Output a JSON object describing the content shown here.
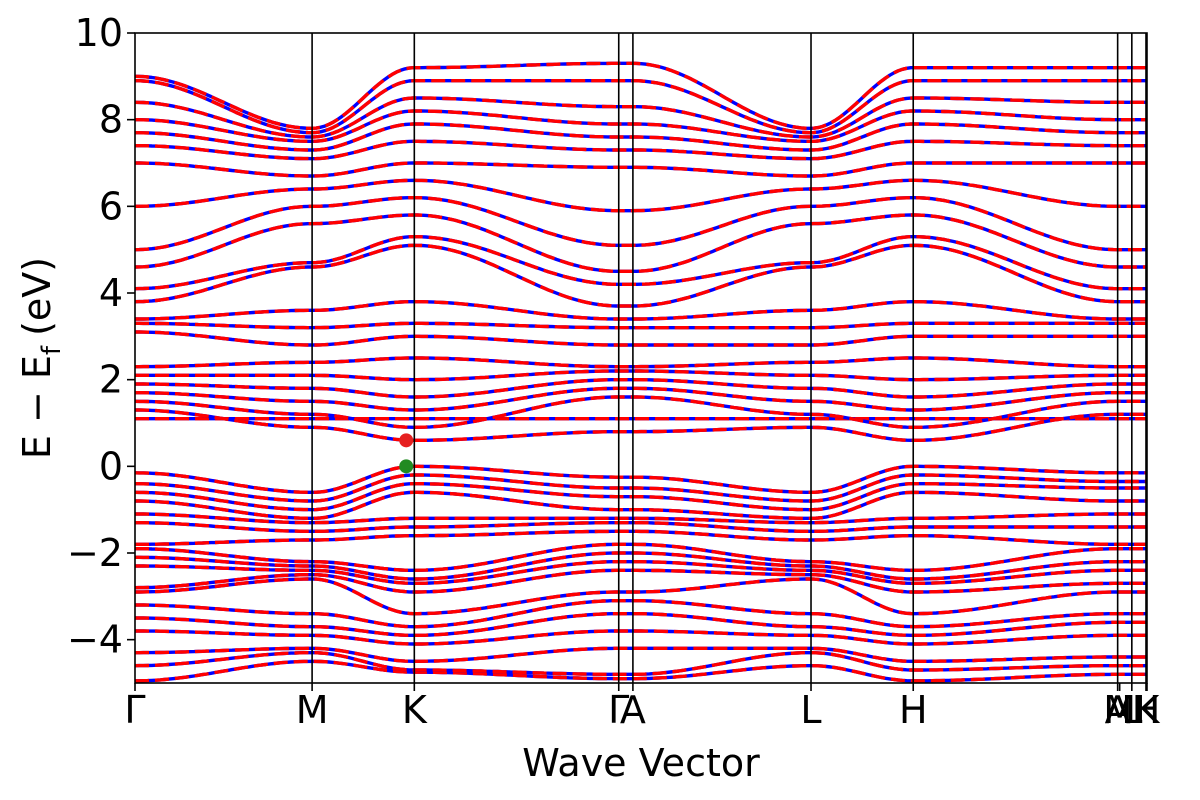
{
  "chart_data": {
    "type": "line",
    "title": "",
    "xlabel": "Wave Vector",
    "ylabel_main": "E − E",
    "ylabel_sub": "f",
    "ylabel_unit": "(eV)",
    "ylim": [
      -5,
      10
    ],
    "yticks": [
      {
        "value": 10,
        "label": "10"
      },
      {
        "value": 8,
        "label": "8"
      },
      {
        "value": 6,
        "label": "6"
      },
      {
        "value": 4,
        "label": "4"
      },
      {
        "value": 2,
        "label": "2"
      },
      {
        "value": 0,
        "label": "0"
      },
      {
        "value": -2,
        "label": "−2"
      },
      {
        "value": -4,
        "label": "−4"
      }
    ],
    "xlim": [
      0,
      1
    ],
    "kpoints": [
      {
        "label": "Γ",
        "x": 0.0
      },
      {
        "label": "M",
        "x": 0.175
      },
      {
        "label": "K",
        "x": 0.276
      },
      {
        "label": "Γ",
        "x": 0.478
      },
      {
        "label": "A",
        "x": 0.492
      },
      {
        "label": "L",
        "x": 0.668
      },
      {
        "label": "H",
        "x": 0.769
      },
      {
        "label": "A",
        "x": 0.971
      },
      {
        "label": "M",
        "x": 0.973
      },
      {
        "label": "L",
        "x": 0.985
      },
      {
        "label": "H",
        "x": 0.999
      },
      {
        "label": "K",
        "x": 1.0
      }
    ],
    "vlines_x": [
      0.175,
      0.276,
      0.478,
      0.492,
      0.668,
      0.769,
      0.971,
      0.985,
      0.999
    ],
    "grid": false,
    "legend": "none",
    "series": [
      {
        "color": "#0000ff",
        "style": "solid"
      },
      {
        "color": "#ff0000",
        "style": "dashed"
      }
    ],
    "band_edges": {
      "vbm": {
        "x": 0.268,
        "y": 0.0,
        "color": "#228b22"
      },
      "cbm": {
        "x": 0.268,
        "y": 0.6,
        "color": "#e62020"
      }
    },
    "bands": [
      [
        -4.95,
        -4.5,
        -4.75,
        -4.9,
        -4.9,
        -4.6,
        -4.95,
        -4.8
      ],
      [
        -4.6,
        -4.3,
        -4.7,
        -4.8,
        -4.8,
        -4.3,
        -4.7,
        -4.6
      ],
      [
        -4.3,
        -4.2,
        -4.5,
        -4.2,
        -4.2,
        -4.2,
        -4.5,
        -4.4
      ],
      [
        -3.8,
        -3.9,
        -4.1,
        -3.8,
        -3.8,
        -3.9,
        -4.1,
        -3.9
      ],
      [
        -3.5,
        -3.7,
        -3.9,
        -3.4,
        -3.4,
        -3.7,
        -3.9,
        -3.6
      ],
      [
        -3.2,
        -3.4,
        -3.7,
        -3.1,
        -3.1,
        -3.4,
        -3.7,
        -3.4
      ],
      [
        -2.9,
        -2.6,
        -3.4,
        -2.9,
        -2.9,
        -2.6,
        -3.4,
        -2.9
      ],
      [
        -2.8,
        -2.5,
        -2.9,
        -2.4,
        -2.4,
        -2.5,
        -2.9,
        -2.7
      ],
      [
        -2.3,
        -2.4,
        -2.7,
        -2.2,
        -2.2,
        -2.4,
        -2.7,
        -2.4
      ],
      [
        -2.1,
        -2.3,
        -2.6,
        -2.0,
        -2.0,
        -2.3,
        -2.6,
        -2.2
      ],
      [
        -1.9,
        -2.2,
        -2.4,
        -1.8,
        -1.8,
        -2.2,
        -2.4,
        -1.9
      ],
      [
        -1.8,
        -1.7,
        -1.6,
        -1.5,
        -1.5,
        -1.7,
        -1.6,
        -1.8
      ],
      [
        -1.3,
        -1.5,
        -1.4,
        -1.3,
        -1.3,
        -1.5,
        -1.4,
        -1.4
      ],
      [
        -1.1,
        -1.3,
        -1.2,
        -1.2,
        -1.2,
        -1.3,
        -1.2,
        -1.1
      ],
      [
        -0.8,
        -1.2,
        -0.6,
        -1.0,
        -1.0,
        -1.2,
        -0.6,
        -0.8
      ],
      [
        -0.6,
        -1.0,
        -0.4,
        -0.7,
        -0.7,
        -1.0,
        -0.4,
        -0.5
      ],
      [
        -0.4,
        -0.8,
        -0.2,
        -0.5,
        -0.5,
        -0.8,
        -0.2,
        -0.35
      ],
      [
        -0.15,
        -0.6,
        0.0,
        -0.25,
        -0.25,
        -0.6,
        0.0,
        -0.15
      ],
      [
        1.1,
        1.1,
        1.1,
        1.1,
        1.1,
        1.1,
        1.1,
        1.1
      ],
      [
        1.3,
        0.9,
        0.6,
        0.8,
        0.8,
        0.9,
        0.6,
        1.2
      ],
      [
        1.5,
        1.2,
        0.9,
        1.6,
        1.6,
        1.2,
        0.9,
        1.5
      ],
      [
        1.7,
        1.5,
        1.3,
        1.8,
        1.8,
        1.5,
        1.3,
        1.7
      ],
      [
        1.9,
        1.8,
        1.6,
        2.0,
        2.0,
        1.8,
        1.6,
        1.9
      ],
      [
        2.1,
        2.1,
        2.0,
        2.2,
        2.2,
        2.1,
        2.0,
        2.1
      ],
      [
        2.3,
        2.4,
        2.5,
        2.3,
        2.3,
        2.4,
        2.5,
        2.3
      ],
      [
        3.1,
        2.8,
        3.0,
        2.8,
        2.8,
        2.8,
        3.0,
        3.0
      ],
      [
        3.3,
        3.2,
        3.3,
        3.2,
        3.2,
        3.2,
        3.3,
        3.3
      ],
      [
        3.4,
        3.6,
        3.8,
        3.4,
        3.4,
        3.6,
        3.8,
        3.4
      ],
      [
        3.8,
        4.6,
        5.1,
        3.7,
        3.7,
        4.6,
        5.1,
        3.8
      ],
      [
        4.1,
        4.7,
        5.3,
        4.2,
        4.2,
        4.7,
        5.3,
        4.1
      ],
      [
        4.6,
        5.6,
        5.8,
        4.5,
        4.5,
        5.6,
        5.8,
        4.6
      ],
      [
        5.0,
        6.0,
        6.2,
        5.1,
        5.1,
        6.0,
        6.2,
        5.0
      ],
      [
        6.0,
        6.4,
        6.6,
        5.9,
        5.9,
        6.4,
        6.6,
        6.0
      ],
      [
        7.0,
        6.7,
        7.0,
        6.9,
        6.9,
        6.7,
        7.0,
        7.0
      ],
      [
        7.4,
        7.1,
        7.5,
        7.3,
        7.3,
        7.1,
        7.5,
        7.4
      ],
      [
        7.7,
        7.3,
        7.9,
        7.6,
        7.6,
        7.3,
        7.9,
        7.7
      ],
      [
        8.0,
        7.5,
        8.2,
        7.9,
        7.9,
        7.5,
        8.2,
        8.0
      ],
      [
        8.4,
        7.6,
        8.5,
        8.3,
        8.3,
        7.6,
        8.5,
        8.4
      ],
      [
        8.9,
        7.7,
        8.9,
        8.9,
        8.9,
        7.7,
        8.9,
        8.9
      ],
      [
        9.0,
        7.8,
        9.2,
        9.3,
        9.3,
        7.8,
        9.2,
        9.2
      ]
    ]
  }
}
